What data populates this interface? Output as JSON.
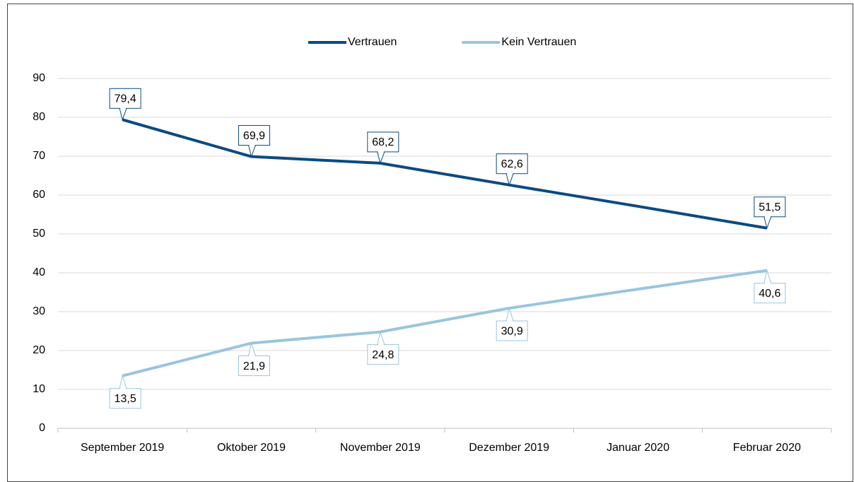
{
  "chart_data": {
    "type": "line",
    "categories": [
      "September 2019",
      "Oktober 2019",
      "November 2019",
      "Dezember 2019",
      "Januar 2020",
      "Februar 2020"
    ],
    "series": [
      {
        "name": "Vertrauen",
        "color": "#0b4a82",
        "values": [
          79.4,
          69.9,
          68.2,
          62.6,
          57.1,
          51.5
        ],
        "value_labels": [
          "79,4",
          "69,9",
          "68,2",
          "62,6",
          null,
          "51,5"
        ]
      },
      {
        "name": "Kein Vertrauen",
        "color": "#9ac5de",
        "values": [
          13.5,
          21.9,
          24.8,
          30.9,
          35.8,
          40.6
        ],
        "value_labels": [
          "13,5",
          "21,9",
          "24,8",
          "30,9",
          null,
          "40,6"
        ]
      }
    ],
    "ylim": [
      0,
      90
    ],
    "yticks": [
      0,
      10,
      20,
      30,
      40,
      50,
      60,
      70,
      80,
      90
    ],
    "grid": true,
    "legend": "top"
  }
}
